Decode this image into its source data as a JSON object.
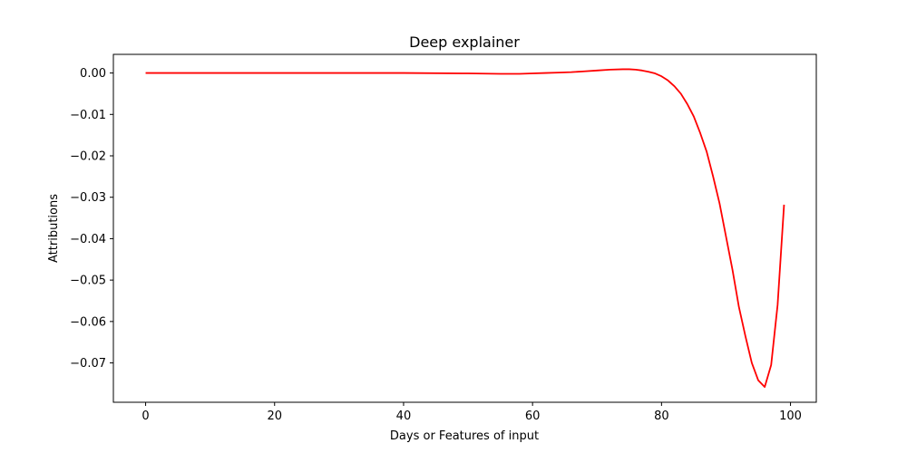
{
  "chart_data": {
    "type": "line",
    "title": "Deep explainer",
    "xlabel": "Days or Features of input",
    "ylabel": "Attributions",
    "xlim": [
      -5,
      104
    ],
    "ylim": [
      -0.0795,
      0.0045
    ],
    "xticks": [
      0,
      20,
      40,
      60,
      80,
      100
    ],
    "yticks": [
      0.0,
      -0.01,
      -0.02,
      -0.03,
      -0.04,
      -0.05,
      -0.06,
      -0.07
    ],
    "ytick_labels": [
      "0.00",
      "−0.01",
      "−0.02",
      "−0.03",
      "−0.04",
      "−0.05",
      "−0.06",
      "−0.07"
    ],
    "grid": false,
    "series": [
      {
        "color": "#ff0000",
        "x": [
          0,
          10,
          20,
          30,
          40,
          50,
          55,
          58,
          60,
          62,
          64,
          66,
          68,
          70,
          72,
          74,
          75,
          76,
          77,
          78,
          79,
          80,
          81,
          82,
          83,
          84,
          85,
          86,
          87,
          88,
          89,
          90,
          91,
          92,
          93,
          94,
          95,
          96,
          97,
          98,
          99
        ],
        "y": [
          0.0,
          0.0,
          0.0,
          0.0,
          0.0,
          -0.0001,
          -0.0002,
          -0.0002,
          -0.0001,
          0.0,
          0.0001,
          0.0002,
          0.0004,
          0.0006,
          0.0008,
          0.0009,
          0.0009,
          0.0008,
          0.0006,
          0.0003,
          -0.0001,
          -0.0008,
          -0.0018,
          -0.0032,
          -0.005,
          -0.0075,
          -0.0105,
          -0.0145,
          -0.019,
          -0.025,
          -0.0315,
          -0.0395,
          -0.0475,
          -0.0565,
          -0.0635,
          -0.07,
          -0.0742,
          -0.0758,
          -0.0705,
          -0.056,
          -0.0318
        ]
      }
    ]
  }
}
